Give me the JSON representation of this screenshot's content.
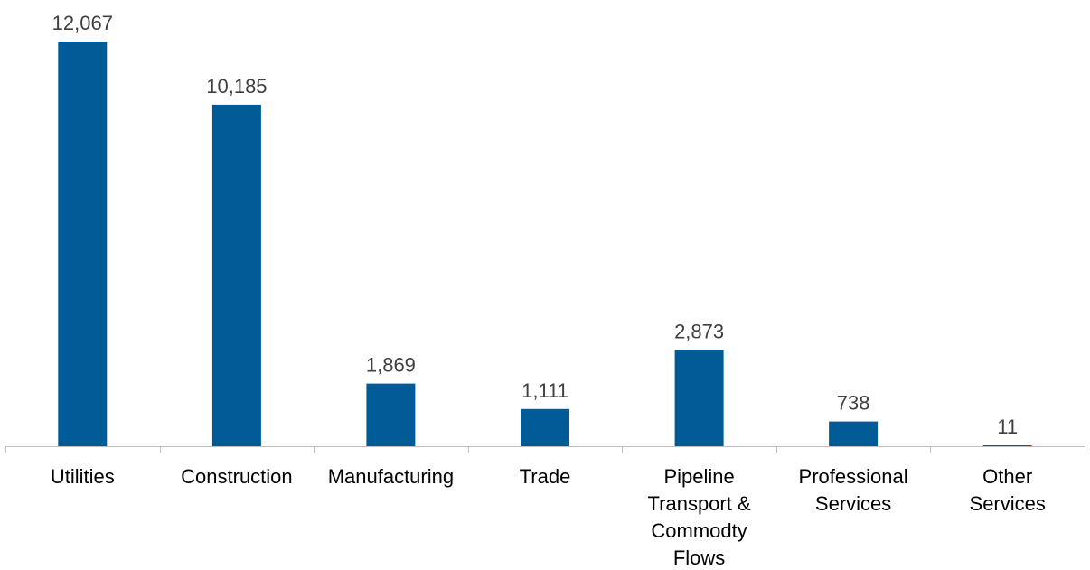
{
  "chart_data": {
    "type": "bar",
    "categories": [
      [
        "Utilities"
      ],
      [
        "Construction"
      ],
      [
        "Manufacturing"
      ],
      [
        "Trade"
      ],
      [
        "Pipeline",
        "Transport &",
        "Commodty",
        "Flows"
      ],
      [
        "Professional",
        "Services"
      ],
      [
        "Other",
        "Services"
      ]
    ],
    "values": [
      12067,
      10185,
      1869,
      1111,
      2873,
      738,
      11
    ],
    "data_labels": [
      "12,067",
      "10,185",
      "1,869",
      "1,111",
      "2,873",
      "738",
      "11"
    ],
    "ylim": [
      0,
      12067
    ],
    "grid": false,
    "legend": "none",
    "bar_color": "#005b96",
    "axis_color": "#bfbfbf"
  }
}
